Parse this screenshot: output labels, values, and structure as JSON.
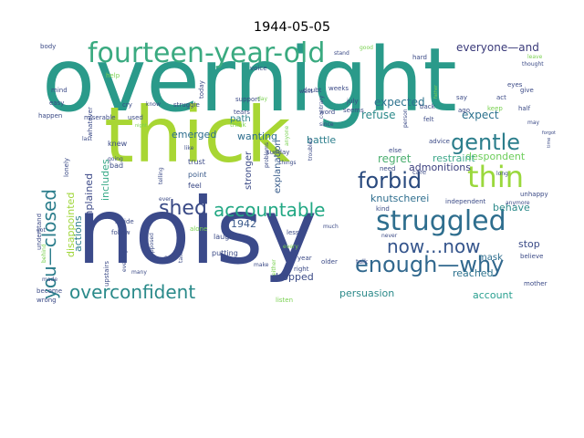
{
  "title": "1944-05-05",
  "words": [
    {
      "text": "overnight",
      "color": "#2a9a8a",
      "size": 96
    },
    {
      "text": "thick",
      "color": "#a8d633",
      "size": 84
    },
    {
      "text": "noisy",
      "color": "#3b4a8a",
      "size": 100
    },
    {
      "text": "fourteen-year-old",
      "color": "#3aaa80",
      "size": 30
    },
    {
      "text": "struggled",
      "color": "#2e6e8e",
      "size": 30
    },
    {
      "text": "enough—why",
      "color": "#31688e",
      "size": 24
    },
    {
      "text": "gentle",
      "color": "#2c7e8c",
      "size": 24
    },
    {
      "text": "thin",
      "color": "#9ad83c",
      "size": 32
    },
    {
      "text": "forbid",
      "color": "#2a4a7e",
      "size": 24
    },
    {
      "text": "shed",
      "color": "#3a4a86",
      "size": 22
    },
    {
      "text": "accountable",
      "color": "#22a884",
      "size": 20
    },
    {
      "text": "you—closed",
      "color": "#2c7e8c",
      "size": 20
    },
    {
      "text": "overconfident",
      "color": "#2a8a8a",
      "size": 20
    },
    {
      "text": "now…now",
      "color": "#35558c",
      "size": 20
    },
    {
      "text": "everyone—and",
      "color": "#3a3a7a",
      "size": 12
    },
    {
      "text": "expected",
      "color": "#2c728e",
      "size": 12
    },
    {
      "text": "refuse",
      "color": "#2c8a8a",
      "size": 12
    },
    {
      "text": "expect",
      "color": "#2c728e",
      "size": 12
    },
    {
      "text": "regret",
      "color": "#4caf70",
      "size": 12
    },
    {
      "text": "despondent",
      "color": "#6ccd5a",
      "size": 11
    },
    {
      "text": "restraint",
      "color": "#3ea88a",
      "size": 11
    },
    {
      "text": "knutscherei",
      "color": "#2e6e8e",
      "size": 11
    },
    {
      "text": "admonitions",
      "color": "#3b3f7e",
      "size": 11
    },
    {
      "text": "wanting",
      "color": "#2e6e8e",
      "size": 11
    },
    {
      "text": "battle",
      "color": "#2c7e8c",
      "size": 11
    },
    {
      "text": "emerged",
      "color": "#2e6e8e",
      "size": 11
    },
    {
      "text": "path",
      "color": "#2c7e8c",
      "size": 10
    },
    {
      "text": "disappointed",
      "color": "#a0d63a",
      "size": 11
    },
    {
      "text": "complained",
      "color": "#3d4a88",
      "size": 11
    },
    {
      "text": "actions",
      "color": "#2c7e8c",
      "size": 11
    },
    {
      "text": "includes",
      "color": "#3aaa88",
      "size": 11
    },
    {
      "text": "stronger",
      "color": "#3b4a86",
      "size": 10
    },
    {
      "text": "explanation",
      "color": "#3a5e8c",
      "size": 10
    },
    {
      "text": "behave",
      "color": "#2c8a8a",
      "size": 11
    },
    {
      "text": "stop",
      "color": "#3a4a86",
      "size": 11
    },
    {
      "text": "mask",
      "color": "#2e6e8e",
      "size": 10
    },
    {
      "text": "reached",
      "color": "#2c728e",
      "size": 11
    },
    {
      "text": "dropped",
      "color": "#3a4a86",
      "size": 11
    },
    {
      "text": "persuasion",
      "color": "#2c8a8a",
      "size": 11
    },
    {
      "text": "account",
      "color": "#2aa090",
      "size": 11
    },
    {
      "text": "1942",
      "color": "#3b5a8c",
      "size": 11
    },
    {
      "text": "feel",
      "color": "#3b4a86",
      "size": 8
    },
    {
      "text": "point",
      "color": "#3a5a8a",
      "size": 8
    },
    {
      "text": "trust",
      "color": "#3b4a86",
      "size": 8
    },
    {
      "text": "laugh",
      "color": "#3b4a86",
      "size": 8
    },
    {
      "text": "putting",
      "color": "#3b4a86",
      "size": 8
    },
    {
      "text": "knew",
      "color": "#3b4a86",
      "size": 8
    },
    {
      "text": "bad",
      "color": "#3b4a86",
      "size": 8
    },
    {
      "text": "inside",
      "color": "#3b4a86",
      "size": 7
    },
    {
      "text": "follow",
      "color": "#3b4a86",
      "size": 7
    },
    {
      "text": "alone",
      "color": "#7ad151",
      "size": 7
    },
    {
      "text": "upstairs",
      "color": "#3b4a86",
      "size": 7
    },
    {
      "text": "become",
      "color": "#3b4a86",
      "size": 7
    },
    {
      "text": "wrong",
      "color": "#3b4a86",
      "size": 7
    },
    {
      "text": "understand",
      "color": "#3b4a86",
      "size": 7
    },
    {
      "text": "lonely",
      "color": "#3b4a86",
      "size": 7
    },
    {
      "text": "whatever",
      "color": "#3b4a86",
      "size": 7
    },
    {
      "text": "easy",
      "color": "#3b4a86",
      "size": 7
    },
    {
      "text": "mind",
      "color": "#3b4a86",
      "size": 7
    },
    {
      "text": "happen",
      "color": "#3b4a86",
      "size": 7
    },
    {
      "text": "miserable",
      "color": "#3b4a86",
      "size": 7
    },
    {
      "text": "body",
      "color": "#3b4a86",
      "size": 7
    },
    {
      "text": "cry",
      "color": "#3b4a86",
      "size": 7
    },
    {
      "text": "know",
      "color": "#3b4a86",
      "size": 6
    },
    {
      "text": "help",
      "color": "#7ad151",
      "size": 7
    },
    {
      "text": "today",
      "color": "#3b4a86",
      "size": 7
    },
    {
      "text": "used",
      "color": "#3b4a86",
      "size": 7
    },
    {
      "text": "struggle",
      "color": "#3b4a86",
      "size": 7
    },
    {
      "text": "support",
      "color": "#3b4a86",
      "size": 7
    },
    {
      "text": "tears",
      "color": "#3b4a86",
      "size": 7
    },
    {
      "text": "voice",
      "color": "#3b4a86",
      "size": 7
    },
    {
      "text": "doubt",
      "color": "#3b4a86",
      "size": 7
    },
    {
      "text": "word",
      "color": "#3b4a86",
      "size": 7
    },
    {
      "text": "weeks",
      "color": "#3b4a86",
      "size": 7
    },
    {
      "text": "july",
      "color": "#3b4a86",
      "size": 7
    },
    {
      "text": "seems",
      "color": "#3b4a86",
      "size": 7
    },
    {
      "text": "back",
      "color": "#3b4a86",
      "size": 7
    },
    {
      "text": "hard",
      "color": "#3b4a86",
      "size": 7
    },
    {
      "text": "stand",
      "color": "#3b4a86",
      "size": 6
    },
    {
      "text": "good",
      "color": "#7ad151",
      "size": 6
    },
    {
      "text": "say",
      "color": "#3b4a86",
      "size": 7
    },
    {
      "text": "act",
      "color": "#3b4a86",
      "size": 7
    },
    {
      "text": "ago",
      "color": "#3b4a86",
      "size": 7
    },
    {
      "text": "half",
      "color": "#3b4a86",
      "size": 7
    },
    {
      "text": "give",
      "color": "#3b4a86",
      "size": 7
    },
    {
      "text": "eyes",
      "color": "#3b4a86",
      "size": 7
    },
    {
      "text": "keep",
      "color": "#7ad151",
      "size": 7
    },
    {
      "text": "leave",
      "color": "#7ad151",
      "size": 6
    },
    {
      "text": "thought",
      "color": "#3b4a86",
      "size": 6
    },
    {
      "text": "felt",
      "color": "#3b4a86",
      "size": 7
    },
    {
      "text": "advice",
      "color": "#3b4a86",
      "size": 7
    },
    {
      "text": "person",
      "color": "#3b4a86",
      "size": 6
    },
    {
      "text": "need",
      "color": "#3b4a86",
      "size": 7
    },
    {
      "text": "care",
      "color": "#3b4a86",
      "size": 7
    },
    {
      "text": "else",
      "color": "#3b4a86",
      "size": 7
    },
    {
      "text": "kind",
      "color": "#3b4a86",
      "size": 7
    },
    {
      "text": "independent",
      "color": "#3b4a86",
      "size": 7
    },
    {
      "text": "unhappy",
      "color": "#3b4a86",
      "size": 7
    },
    {
      "text": "anymore",
      "color": "#3b4a86",
      "size": 6
    },
    {
      "text": "believe",
      "color": "#3b4a86",
      "size": 7
    },
    {
      "text": "mother",
      "color": "#3b4a86",
      "size": 7
    },
    {
      "text": "talk",
      "color": "#3b4a86",
      "size": 7
    },
    {
      "text": "less",
      "color": "#3b4a86",
      "size": 7
    },
    {
      "text": "every",
      "color": "#7ad151",
      "size": 6
    },
    {
      "text": "year",
      "color": "#3b4a86",
      "size": 7
    },
    {
      "text": "older",
      "color": "#3b4a86",
      "size": 7
    },
    {
      "text": "right",
      "color": "#3b4a86",
      "size": 7
    },
    {
      "text": "listen",
      "color": "#7ad151",
      "size": 7
    },
    {
      "text": "since",
      "color": "#3b4a86",
      "size": 6
    },
    {
      "text": "want",
      "color": "#3b4a86",
      "size": 6
    },
    {
      "text": "sunday",
      "color": "#3b4a86",
      "size": 7
    },
    {
      "text": "things",
      "color": "#3b4a86",
      "size": 6
    },
    {
      "text": "like",
      "color": "#3b4a86",
      "size": 6
    },
    {
      "text": "ever",
      "color": "#3b4a86",
      "size": 6
    },
    {
      "text": "much",
      "color": "#3b4a86",
      "size": 6
    },
    {
      "text": "make",
      "color": "#3b4a86",
      "size": 6
    },
    {
      "text": "ears",
      "color": "#3b4a86",
      "size": 6
    },
    {
      "text": "evening",
      "color": "#3b4a86",
      "size": 6
    },
    {
      "text": "talking",
      "color": "#3b4a86",
      "size": 6
    },
    {
      "text": "supposed",
      "color": "#3b4a86",
      "size": 6
    },
    {
      "text": "many",
      "color": "#3b4a86",
      "size": 6
    },
    {
      "text": "made",
      "color": "#3b4a86",
      "size": 6
    },
    {
      "text": "going",
      "color": "#3b4a86",
      "size": 6
    },
    {
      "text": "telling",
      "color": "#3b4a86",
      "size": 6
    },
    {
      "text": "think",
      "color": "#7ad151",
      "size": 7
    },
    {
      "text": "last",
      "color": "#3b4a86",
      "size": 6
    },
    {
      "text": "problems",
      "color": "#3b4a86",
      "size": 6
    },
    {
      "text": "troubles",
      "color": "#3b4a86",
      "size": 6
    },
    {
      "text": "contrary",
      "color": "#3b4a86",
      "size": 6
    },
    {
      "text": "anyone",
      "color": "#7ad151",
      "size": 6
    },
    {
      "text": "either",
      "color": "#7ad151",
      "size": 6
    },
    {
      "text": "never",
      "color": "#3b4a86",
      "size": 6
    },
    {
      "text": "long",
      "color": "#3b4a86",
      "size": 6
    },
    {
      "text": "may",
      "color": "#3b4a86",
      "size": 6
    },
    {
      "text": "forgot",
      "color": "#3b4a86",
      "size": 5
    },
    {
      "text": "time",
      "color": "#3b4a86",
      "size": 5
    },
    {
      "text": "got",
      "color": "#3b4a86",
      "size": 6
    },
    {
      "text": "behind",
      "color": "#7ad151",
      "size": 6
    },
    {
      "text": "father",
      "color": "#7ad151",
      "size": 5
    },
    {
      "text": "day",
      "color": "#7ad151",
      "size": 6
    },
    {
      "text": "night",
      "color": "#7ad151",
      "size": 5
    }
  ]
}
